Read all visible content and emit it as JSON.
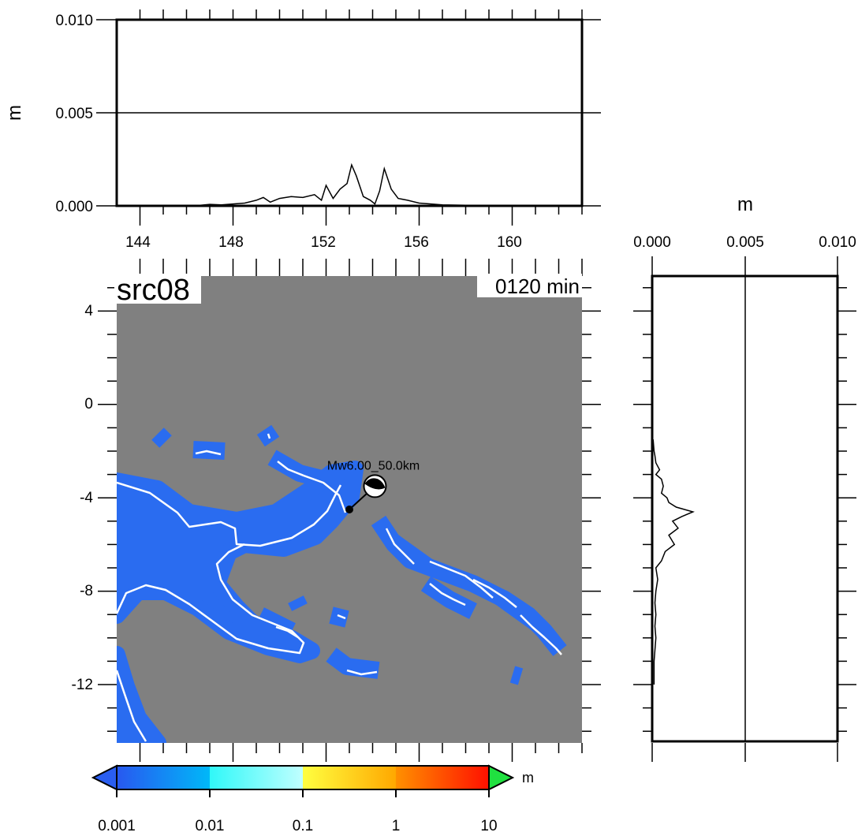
{
  "top_panel": {
    "ylabel": "m",
    "yticks": [
      "0.010",
      "0.005",
      "0.000"
    ],
    "xticks": [
      "144",
      "148",
      "152",
      "156",
      "160"
    ]
  },
  "right_panel": {
    "xlabel": "m",
    "xticks": [
      "0.000",
      "0.005",
      "0.010"
    ]
  },
  "map": {
    "title": "src08",
    "time_label": "0120 min",
    "yticks": [
      "4",
      "0",
      "-4",
      "-8",
      "-12"
    ],
    "event_label": "Mw6.00_50.0km",
    "lon_range": [
      143,
      163
    ],
    "lat_range": [
      -14.5,
      5.5
    ],
    "epicenter": {
      "lon": 153.0,
      "lat": -4.5
    },
    "beachball": {
      "lon": 154.1,
      "lat": -3.5
    },
    "colors": {
      "ocean": "#808080",
      "wave_low": "#2a6cf0",
      "coast": "#ffffff"
    }
  },
  "colorbar": {
    "ticks": [
      "0.001",
      "0.01",
      "0.1",
      "1",
      "10"
    ],
    "unit": "m",
    "colors": [
      "#2060f0",
      "#00c8ff",
      "#40ffff",
      "#ffff40",
      "#ffa000",
      "#ff2000"
    ]
  },
  "chart_data": [
    {
      "type": "line",
      "title": "",
      "xlabel": "",
      "ylabel": "m",
      "xlim": [
        143,
        163
      ],
      "ylim": [
        0,
        0.01
      ],
      "series": [
        {
          "x": [
            145,
            146.5,
            147,
            147.5,
            148,
            148.5,
            149,
            149.3,
            149.6,
            150,
            150.5,
            151,
            151.5,
            151.8,
            152,
            152.3,
            152.6,
            152.9,
            153.1,
            153.3,
            153.6,
            153.9,
            154.1,
            154.3,
            154.5,
            154.8,
            155.1,
            155.5,
            156,
            156.5,
            157,
            158,
            159,
            160,
            161
          ],
          "y": [
            0,
            2e-05,
            8e-05,
            5e-05,
            0.0001,
            0.00015,
            0.0003,
            0.00045,
            0.0002,
            0.0004,
            0.0005,
            0.00045,
            0.0006,
            0.0003,
            0.0011,
            0.0004,
            0.0009,
            0.0012,
            0.0022,
            0.0016,
            0.0005,
            0.0003,
            0.0001,
            0.0008,
            0.002,
            0.0009,
            0.0004,
            0.0003,
            0.00015,
            0.0001,
            5e-05,
            3e-05,
            1e-05,
            0,
            0
          ]
        }
      ]
    },
    {
      "type": "line",
      "title": "",
      "xlabel": "m",
      "ylabel": "",
      "xlim": [
        0,
        0.01
      ],
      "ylim": [
        -14.5,
        5.5
      ],
      "series": [
        {
          "lat": [
            -12,
            -11,
            -10,
            -9.5,
            -9,
            -8.5,
            -8,
            -7.5,
            -7,
            -6.7,
            -6.3,
            -6,
            -5.6,
            -5.3,
            -5,
            -4.8,
            -4.6,
            -4.4,
            -4.2,
            -4,
            -3.8,
            -3.5,
            -3.2,
            -3,
            -2.8,
            -2.5,
            -2.2,
            -2,
            -1.5
          ],
          "x": [
            0.0001,
            0.0001,
            0.0002,
            0.00015,
            0.0002,
            0.00015,
            0.0002,
            0.0003,
            0.0002,
            0.0005,
            0.0007,
            0.0012,
            0.0009,
            0.0014,
            0.0011,
            0.0016,
            0.0022,
            0.0013,
            0.0009,
            0.0008,
            0.0005,
            0.0006,
            0.0005,
            0.0002,
            0.0004,
            0.0002,
            0.00015,
            0.0001,
            5e-05
          ]
        }
      ]
    }
  ]
}
